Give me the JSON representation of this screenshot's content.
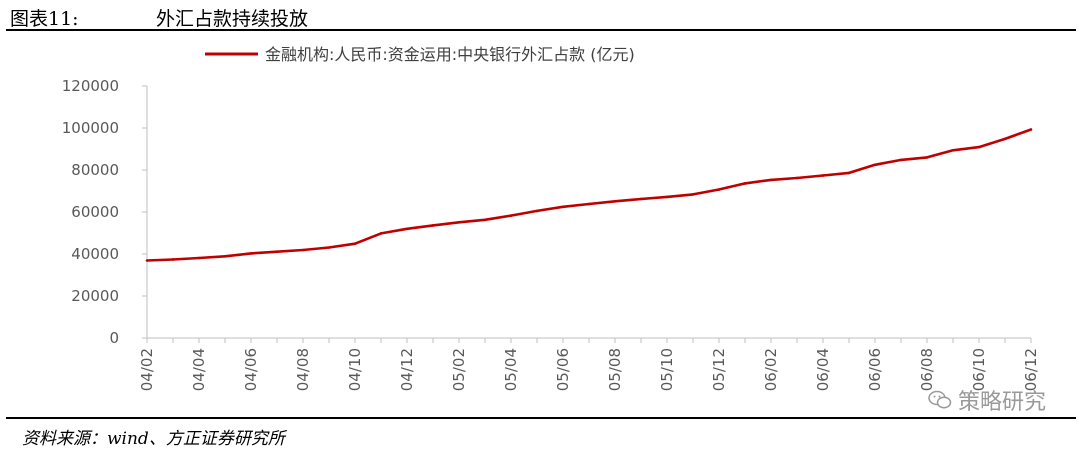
{
  "header": {
    "figure_number": "图表11:",
    "figure_title": "外汇占款持续投放"
  },
  "source": "资料来源：wind、方正证券研究所",
  "watermark": {
    "text": "策略研究",
    "icon": "wechat-icon"
  },
  "colors": {
    "series": "#c00000",
    "axis": "#bfbfbf",
    "tick_text": "#595959"
  },
  "chart_data": {
    "type": "line",
    "title": "",
    "xlabel": "",
    "ylabel": "",
    "ylim": [
      0,
      120000
    ],
    "yticks": [
      "0",
      "20000",
      "40000",
      "60000",
      "80000",
      "100000",
      "120000"
    ],
    "grid": false,
    "legend_position": "top-center",
    "xtick_labels": [
      "04/02",
      "04/04",
      "04/06",
      "04/08",
      "04/10",
      "04/12",
      "05/02",
      "05/04",
      "05/06",
      "05/08",
      "05/10",
      "05/12",
      "06/02",
      "06/04",
      "06/06",
      "06/08",
      "06/10",
      "06/12"
    ],
    "x": [
      "04/02",
      "04/03",
      "04/04",
      "04/05",
      "04/06",
      "04/07",
      "04/08",
      "04/09",
      "04/10",
      "04/11",
      "04/12",
      "05/01",
      "05/02",
      "05/03",
      "05/04",
      "05/05",
      "05/06",
      "05/07",
      "05/08",
      "05/09",
      "05/10",
      "05/11",
      "05/12",
      "06/01",
      "06/02",
      "06/03",
      "06/04",
      "06/05",
      "06/06",
      "06/07",
      "06/08",
      "06/09",
      "06/10",
      "06/11",
      "06/12"
    ],
    "series": [
      {
        "name": "金融机构:人民币:资金运用:中央银行外汇占款 (亿元)",
        "values": [
          36900,
          37400,
          38100,
          38900,
          40300,
          41100,
          41900,
          43100,
          44900,
          49800,
          52000,
          53600,
          55100,
          56300,
          58300,
          60500,
          62500,
          63800,
          65100,
          66200,
          67200,
          68400,
          70700,
          73600,
          75300,
          76200,
          77400,
          78600,
          82500,
          84800,
          86000,
          89400,
          90900,
          94800,
          99300
        ]
      }
    ]
  }
}
